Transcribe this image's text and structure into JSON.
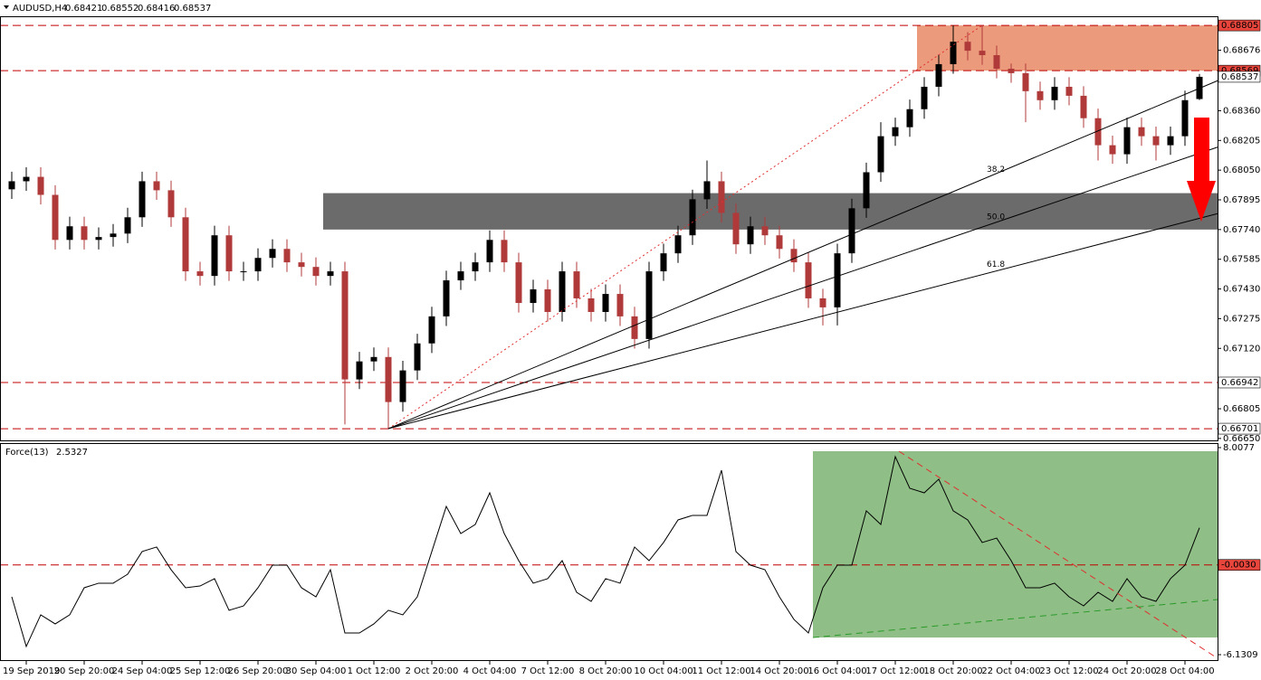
{
  "chart_data": [
    {
      "type": "candlestick",
      "title": "AUDUSD,H4",
      "up_color": "#000000",
      "down_color": "#b03a3a",
      "categories": [
        null,
        "19 Sep 2019",
        null,
        null,
        null,
        "20 Sep 20:00",
        null,
        null,
        null,
        "24 Sep 04:00",
        null,
        null,
        null,
        "25 Sep 12:00",
        null,
        null,
        null,
        "26 Sep 20:00",
        null,
        null,
        null,
        "30 Sep 04:00",
        null,
        null,
        null,
        "1 Oct 12:00",
        null,
        null,
        null,
        "2 Oct 20:00",
        null,
        null,
        null,
        "4 Oct 04:00",
        null,
        null,
        null,
        "7 Oct 12:00",
        null,
        null,
        null,
        "8 Oct 20:00",
        null,
        null,
        null,
        "10 Oct 04:00",
        null,
        null,
        null,
        "11 Oct 12:00",
        null,
        null,
        null,
        "14 Oct 20:00",
        null,
        null,
        null,
        "16 Oct 04:00",
        null,
        null,
        null,
        "17 Oct 12:00",
        null,
        null,
        null,
        "18 Oct 20:00",
        null,
        null,
        null,
        "22 Oct 04:00",
        null,
        null,
        null,
        "23 Oct 12:00",
        null,
        null,
        null,
        "24 Oct 20:00",
        null,
        null,
        null,
        "28 Oct 04:00",
        null
      ],
      "open": [
        0.6795,
        0.67992,
        0.68015,
        0.67921,
        0.67686,
        0.67757,
        0.67686,
        0.67701,
        0.67719,
        0.67804,
        0.67992,
        0.67945,
        0.67804,
        0.67522,
        0.67498,
        0.6771,
        0.67522,
        0.67522,
        0.67592,
        0.67639,
        0.67569,
        0.67545,
        0.67498,
        0.67522,
        0.66958,
        0.67052,
        0.67075,
        0.6684,
        0.67005,
        0.67146,
        0.67287,
        0.67475,
        0.67522,
        0.67569,
        0.67686,
        0.67569,
        0.67357,
        0.67428,
        0.6731,
        0.67522,
        0.67381,
        0.6731,
        0.67404,
        0.67287,
        0.67169,
        0.67522,
        0.67616,
        0.6771,
        0.67898,
        0.67992,
        0.67827,
        0.67663,
        0.67757,
        0.6771,
        0.67639,
        0.67569,
        0.67381,
        0.67334,
        0.67616,
        0.67851,
        0.68039,
        0.68227,
        0.68274,
        0.68368,
        0.68485,
        0.68603,
        0.6872,
        0.68673,
        0.6865,
        0.68579,
        0.68556,
        0.68462,
        0.68415,
        0.68485,
        0.68438,
        0.68321,
        0.6818,
        0.68133,
        0.68274,
        0.68227,
        0.6818,
        0.68227,
        0.68421
      ],
      "high": [
        0.68042,
        0.68065,
        0.68065,
        0.67971,
        0.67807,
        0.67807,
        0.67751,
        0.67769,
        0.67854,
        0.68042,
        0.68042,
        0.67995,
        0.67854,
        0.67572,
        0.6776,
        0.6776,
        0.67572,
        0.67642,
        0.67689,
        0.67689,
        0.67619,
        0.67595,
        0.67572,
        0.67572,
        0.67102,
        0.67125,
        0.67125,
        0.67055,
        0.67196,
        0.67337,
        0.67525,
        0.67572,
        0.67619,
        0.67736,
        0.67736,
        0.67619,
        0.67478,
        0.67478,
        0.67572,
        0.67572,
        0.67431,
        0.67454,
        0.67454,
        0.67337,
        0.67572,
        0.67666,
        0.6776,
        0.67948,
        0.681,
        0.68042,
        0.67877,
        0.67807,
        0.67807,
        0.6776,
        0.67689,
        0.67619,
        0.67431,
        0.67666,
        0.67901,
        0.68089,
        0.683,
        0.68324,
        0.68418,
        0.68535,
        0.68653,
        0.68805,
        0.6877,
        0.68805,
        0.687,
        0.68606,
        0.68606,
        0.68512,
        0.68535,
        0.68535,
        0.68488,
        0.68371,
        0.6823,
        0.68324,
        0.68324,
        0.68277,
        0.68277,
        0.68465,
        0.68552
      ],
      "low": [
        0.679,
        0.67942,
        0.67871,
        0.67636,
        0.67636,
        0.67636,
        0.67636,
        0.67651,
        0.67669,
        0.67754,
        0.67895,
        0.67754,
        0.67472,
        0.67448,
        0.67448,
        0.67472,
        0.67472,
        0.67472,
        0.67542,
        0.67519,
        0.67495,
        0.67448,
        0.67448,
        0.66723,
        0.66908,
        0.67002,
        0.66701,
        0.6679,
        0.66955,
        0.67096,
        0.67237,
        0.67425,
        0.67472,
        0.67519,
        0.67519,
        0.67307,
        0.67307,
        0.6726,
        0.6726,
        0.67331,
        0.6726,
        0.6726,
        0.67237,
        0.67119,
        0.67119,
        0.67472,
        0.67566,
        0.6766,
        0.67848,
        0.67777,
        0.67613,
        0.67613,
        0.6766,
        0.67589,
        0.67519,
        0.67331,
        0.6724,
        0.6724,
        0.67566,
        0.67801,
        0.67989,
        0.68177,
        0.68224,
        0.68318,
        0.68435,
        0.68553,
        0.68623,
        0.686,
        0.68529,
        0.68506,
        0.683,
        0.68365,
        0.68365,
        0.68388,
        0.68271,
        0.681,
        0.68083,
        0.68083,
        0.68177,
        0.681,
        0.6813,
        0.68177,
        0.68416
      ],
      "close": [
        0.67992,
        0.68015,
        0.67921,
        0.67686,
        0.67757,
        0.67686,
        0.67701,
        0.67719,
        0.67804,
        0.67992,
        0.67945,
        0.67804,
        0.67522,
        0.67498,
        0.6771,
        0.67522,
        0.67522,
        0.67592,
        0.67639,
        0.67569,
        0.67545,
        0.67498,
        0.67522,
        0.66958,
        0.67052,
        0.67075,
        0.6684,
        0.67005,
        0.67146,
        0.67287,
        0.67475,
        0.67522,
        0.67569,
        0.67686,
        0.67569,
        0.67357,
        0.67428,
        0.6731,
        0.67522,
        0.67381,
        0.6731,
        0.67404,
        0.67287,
        0.67169,
        0.67522,
        0.67616,
        0.6771,
        0.67898,
        0.67992,
        0.67827,
        0.67663,
        0.67757,
        0.6771,
        0.67639,
        0.67569,
        0.67381,
        0.67334,
        0.67616,
        0.67851,
        0.68039,
        0.68227,
        0.68274,
        0.68368,
        0.68485,
        0.68603,
        0.6872,
        0.68673,
        0.6865,
        0.68579,
        0.68556,
        0.68462,
        0.68415,
        0.68485,
        0.68438,
        0.68321,
        0.6818,
        0.68133,
        0.68274,
        0.68227,
        0.6818,
        0.68227,
        0.68415,
        0.68537
      ],
      "ylim": [
        0.6664,
        0.689
      ],
      "yticks": [
        0.68676,
        {
          "value": 0.6836,
          "label": "0.68360"
        },
        0.68205,
        {
          "value": 0.6805,
          "label": "0.68050"
        },
        0.67895,
        {
          "value": 0.6774,
          "label": "0.67740"
        },
        0.67585,
        {
          "value": 0.6743,
          "label": "0.67430"
        },
        0.67275,
        {
          "value": 0.6712,
          "label": "0.67120"
        },
        0.66805,
        {
          "value": 0.6665,
          "label": "0.66650"
        }
      ],
      "levels": [
        {
          "value": 0.68805,
          "bg": "#e8453c"
        },
        {
          "value": 0.68569,
          "bg": "#e8453c"
        },
        {
          "value": 0.66942,
          "bg": "#ffffff"
        },
        {
          "value": 0.66701,
          "bg": "#ffffff"
        }
      ],
      "level_color": "#c00000",
      "zones": [
        {
          "start": 63,
          "low": 0.68569,
          "high": 0.68805,
          "color": "#eb9b7c"
        },
        {
          "start": 22,
          "low": 0.6774,
          "high": 0.6793,
          "color": "#6b6b6b"
        }
      ],
      "fan": {
        "start": 26,
        "end": 67,
        "color": "#000000",
        "trend_color": "#e03030",
        "levels": [
          {
            "value": 38.2,
            "label": "38.2"
          },
          {
            "value": 50,
            "label": "50.0"
          },
          {
            "value": 61.8,
            "label": "61.8"
          }
        ]
      }
    },
    {
      "type": "line",
      "title": "Force(13)",
      "current": 2.5327,
      "color": "#000000",
      "values": [
        -2.18,
        -5.57,
        -3.41,
        -4.03,
        -3.41,
        -1.56,
        -1.25,
        -1.25,
        -0.64,
        0.91,
        1.22,
        -0.33,
        -1.56,
        -1.44,
        -0.94,
        -3.1,
        -2.8,
        -1.56,
        -0.02,
        -0.02,
        -1.56,
        -2.18,
        -0.33,
        -4.65,
        -4.65,
        -4.03,
        -3.1,
        -3.41,
        -2.18,
        0.91,
        3.99,
        2.14,
        2.76,
        4.92,
        2.14,
        0.29,
        -1.25,
        -0.94,
        0.29,
        -1.87,
        -2.49,
        -0.94,
        -1.25,
        1.22,
        0.29,
        1.53,
        3.07,
        3.38,
        3.38,
        6.46,
        0.91,
        -0.02,
        -0.33,
        -2.18,
        -3.72,
        -4.65,
        -1.56,
        -0.02,
        -0.02,
        3.69,
        2.76,
        7.39,
        5.23,
        4.92,
        5.85,
        3.69,
        3.07,
        1.53,
        1.83,
        0.29,
        -1.56,
        -1.56,
        -1.25,
        -2.18,
        -2.8,
        -1.87,
        -2.49,
        -0.94,
        -2.18,
        -2.49,
        -0.94,
        -0.02,
        2.53
      ],
      "ylim": [
        -6.1309,
        8.0077
      ],
      "yticks": [
        8.0077,
        -6.1309
      ],
      "levels": [
        {
          "value": -0.003,
          "label": "-0.0030",
          "bg": "#e8453c"
        }
      ],
      "level_color": "#c00000"
    }
  ]
}
